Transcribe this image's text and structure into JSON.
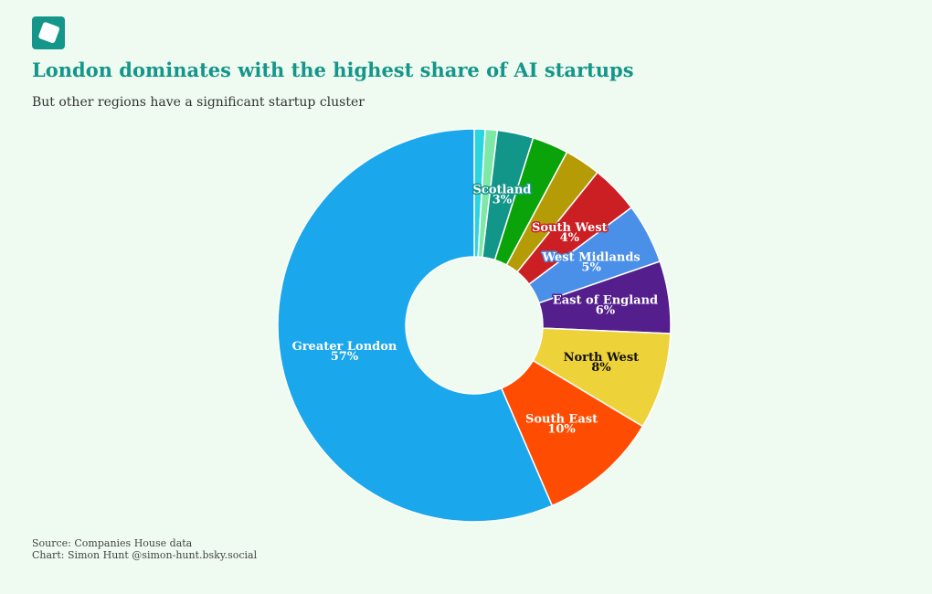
{
  "chart_data": {
    "type": "donut",
    "title": "London dominates with the highest share of AI startups",
    "subtitle": "But other regions have a significant startup cluster",
    "source": "Source: Companies House data",
    "credit": "Chart: Simon Hunt @simon-hunt.bsky.social",
    "categories": [
      null,
      null,
      "Scotland",
      null,
      null,
      "South West",
      "West Midlands",
      "East of England",
      "North West",
      "South East",
      "Greater London"
    ],
    "values": [
      0.9,
      1,
      3,
      3,
      3,
      4,
      5,
      6,
      8,
      10,
      57
    ],
    "value_labels": [
      null,
      null,
      "3%",
      null,
      null,
      "4%",
      "5%",
      "6%",
      "8%",
      "10%",
      "57%"
    ],
    "colors": [
      "#2ad4e0",
      "#7ee8a8",
      "#13968a",
      "#0aa30a",
      "#b59c06",
      "#cc1f24",
      "#4a8fe8",
      "#541f8c",
      "#eed23a",
      "#fe4d02",
      "#1ba7ec"
    ]
  }
}
